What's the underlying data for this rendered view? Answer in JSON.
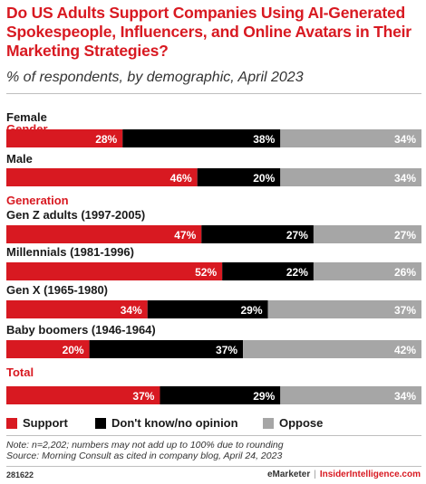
{
  "title": "Do US Adults Support Companies Using AI-Generated Spokespeople, Influencers, and Online Avatars in Their Marketing Strategies?",
  "subtitle": "% of respondents, by demographic, April 2023",
  "colors": {
    "support": "#d81921",
    "dont_know": "#000000",
    "oppose": "#a6a6a6",
    "accent": "#d81921"
  },
  "chart_data": {
    "type": "bar",
    "stacked": true,
    "orientation": "horizontal",
    "xlim": [
      0,
      100
    ],
    "series": [
      {
        "name": "Support",
        "color": "#d81921"
      },
      {
        "name": "Don't know/no opinion",
        "color": "#000000"
      },
      {
        "name": "Oppose",
        "color": "#a6a6a6"
      }
    ],
    "groups": [
      {
        "name": "Gender",
        "rows": [
          {
            "label": "Female",
            "values": [
              28,
              38,
              34
            ]
          },
          {
            "label": "Male",
            "values": [
              46,
              20,
              34
            ]
          }
        ]
      },
      {
        "name": "Generation",
        "rows": [
          {
            "label": "Gen Z adults (1997-2005)",
            "values": [
              47,
              27,
              27
            ]
          },
          {
            "label": "Millennials (1981-1996)",
            "values": [
              52,
              22,
              26
            ]
          },
          {
            "label": "Gen X (1965-1980)",
            "values": [
              34,
              29,
              37
            ]
          },
          {
            "label": "Baby boomers (1946-1964)",
            "values": [
              20,
              37,
              42
            ]
          }
        ]
      },
      {
        "name": "Total",
        "rows": [
          {
            "label": "",
            "values": [
              37,
              29,
              34
            ]
          }
        ]
      }
    ],
    "value_suffix": "%"
  },
  "legend": [
    {
      "label": "Support",
      "color": "#d81921"
    },
    {
      "label": "Don't know/no opinion",
      "color": "#000000"
    },
    {
      "label": "Oppose",
      "color": "#a6a6a6"
    }
  ],
  "note": "Note: n=2,202; numbers may not add up to 100% due to rounding",
  "source": "Source: Morning Consult as cited in company blog, April 24, 2023",
  "footer": {
    "id": "281622",
    "brand": "eMarketer",
    "separator": "|",
    "site": "InsiderIntelligence.com"
  }
}
